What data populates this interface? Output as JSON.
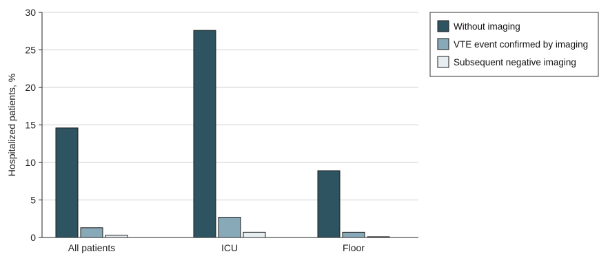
{
  "chart_data": {
    "type": "bar",
    "title": "",
    "xlabel": "",
    "ylabel": "Hospitalized patients, %",
    "ylim": [
      0,
      30
    ],
    "yticks": [
      0,
      5,
      10,
      15,
      20,
      25,
      30
    ],
    "grid": true,
    "legend_position": "top-right",
    "categories": [
      "All patients",
      "ICU",
      "Floor"
    ],
    "series": [
      {
        "name": "Without imaging",
        "values": [
          14.6,
          27.6,
          8.9
        ],
        "color": "#2e5461"
      },
      {
        "name": "VTE event confirmed by imaging",
        "values": [
          1.3,
          2.7,
          0.7
        ],
        "color": "#88a9b7"
      },
      {
        "name": "Subsequent negative imaging",
        "values": [
          0.3,
          0.7,
          0.1
        ],
        "color": "#e6eef2"
      }
    ]
  }
}
